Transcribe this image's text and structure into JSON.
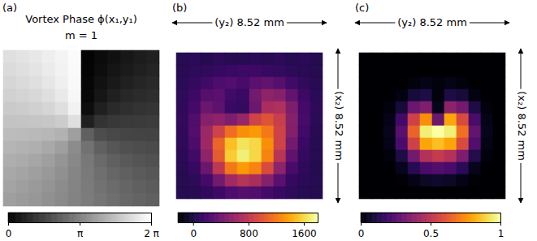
{
  "chart_data": [
    {
      "type": "heatmap",
      "panel_label": "(a)",
      "title": "Vortex Phase ϕ(x₁,y₁)",
      "subtitle": "m = 1",
      "color": "gray",
      "tick_labels": false,
      "cells": [
        [
          5.5,
          5.6,
          5.72,
          5.86,
          6.02,
          6.19,
          0.09,
          0.27,
          0.43,
          0.57,
          0.69,
          0.79
        ],
        [
          5.4,
          5.5,
          5.62,
          5.78,
          5.96,
          6.17,
          0.11,
          0.32,
          0.51,
          0.66,
          0.79,
          0.89
        ],
        [
          5.28,
          5.37,
          5.5,
          5.66,
          5.88,
          6.14,
          0.14,
          0.41,
          0.62,
          0.79,
          0.91,
          1.0
        ],
        [
          5.14,
          5.22,
          5.33,
          5.5,
          5.74,
          6.09,
          0.2,
          0.54,
          0.79,
          0.95,
          1.06,
          1.14
        ],
        [
          4.98,
          5.03,
          5.12,
          5.25,
          5.5,
          5.96,
          0.32,
          0.79,
          1.03,
          1.17,
          1.25,
          1.31
        ],
        [
          4.8,
          4.82,
          4.85,
          4.91,
          5.03,
          5.5,
          0.79,
          1.25,
          1.37,
          1.43,
          1.46,
          1.48
        ],
        [
          4.62,
          4.6,
          4.57,
          4.52,
          4.39,
          3.93,
          2.36,
          1.89,
          1.77,
          1.71,
          1.68,
          1.66
        ],
        [
          4.45,
          4.39,
          4.31,
          4.17,
          3.93,
          3.46,
          2.82,
          2.36,
          2.11,
          1.98,
          1.89,
          1.84
        ],
        [
          4.29,
          4.21,
          4.09,
          3.93,
          3.68,
          3.34,
          2.95,
          2.6,
          2.36,
          2.19,
          2.08,
          2.0
        ],
        [
          4.15,
          4.05,
          3.93,
          3.76,
          3.55,
          3.28,
          3.0,
          2.74,
          2.52,
          2.36,
          2.23,
          2.14
        ],
        [
          4.03,
          3.93,
          3.8,
          3.65,
          3.46,
          3.25,
          3.03,
          2.82,
          2.64,
          2.48,
          2.36,
          2.26
        ],
        [
          3.93,
          3.83,
          3.71,
          3.57,
          3.41,
          3.23,
          3.05,
          2.88,
          2.72,
          2.57,
          2.46,
          2.36
        ]
      ],
      "colorbar": {
        "range": [
          0,
          6.2832
        ],
        "ticks": [
          0,
          {
            "value": 3.1416,
            "label": "π"
          },
          {
            "value": 6.2832,
            "label": "2 π"
          }
        ]
      }
    },
    {
      "type": "heatmap",
      "panel_label": "(b)",
      "xlabel": "(y₂) 8.52 mm",
      "ylabel": "(x₂) 8.52 mm",
      "color": "inferno",
      "tick_labels": false,
      "cells": [
        [
          60,
          80,
          50,
          90,
          70,
          60,
          80,
          70,
          90,
          60,
          80,
          50
        ],
        [
          70,
          90,
          110,
          130,
          150,
          170,
          160,
          140,
          120,
          90,
          70,
          60
        ],
        [
          80,
          120,
          180,
          240,
          260,
          220,
          300,
          340,
          280,
          180,
          110,
          70
        ],
        [
          90,
          160,
          280,
          300,
          180,
          150,
          420,
          560,
          520,
          340,
          160,
          80
        ],
        [
          100,
          200,
          380,
          320,
          150,
          120,
          380,
          700,
          720,
          480,
          200,
          90
        ],
        [
          110,
          250,
          520,
          560,
          480,
          600,
          900,
          1000,
          860,
          520,
          210,
          80
        ],
        [
          100,
          260,
          620,
          900,
          1150,
          1300,
          1350,
          1200,
          900,
          500,
          180,
          70
        ],
        [
          90,
          230,
          640,
          1100,
          1500,
          1650,
          1600,
          1300,
          900,
          420,
          150,
          60
        ],
        [
          80,
          180,
          560,
          1050,
          1550,
          1700,
          1600,
          1250,
          780,
          330,
          120,
          60
        ],
        [
          70,
          130,
          380,
          800,
          1200,
          1350,
          1250,
          950,
          560,
          220,
          100,
          50
        ],
        [
          60,
          90,
          200,
          420,
          650,
          760,
          700,
          520,
          300,
          130,
          80,
          60
        ],
        [
          50,
          70,
          100,
          160,
          240,
          280,
          260,
          200,
          140,
          90,
          60,
          50
        ]
      ],
      "colorbar": {
        "range": [
          -220,
          1800
        ],
        "ticks": [
          0,
          800,
          1600
        ]
      }
    },
    {
      "type": "heatmap",
      "panel_label": "(c)",
      "xlabel": "(y₂) 8.52 mm",
      "ylabel": "(x₂) 8.52 mm",
      "color": "inferno",
      "tick_labels": false,
      "cells": [
        [
          0,
          0,
          0,
          0,
          0,
          0,
          0,
          0,
          0,
          0,
          0,
          0
        ],
        [
          0,
          0,
          0,
          0,
          0,
          0,
          0,
          0,
          0,
          0,
          0,
          0
        ],
        [
          0,
          0,
          0,
          0,
          0.02,
          0.04,
          0.02,
          0.04,
          0.02,
          0,
          0,
          0
        ],
        [
          0,
          0,
          0,
          0.03,
          0.1,
          0.12,
          0.02,
          0.12,
          0.1,
          0.03,
          0,
          0
        ],
        [
          0,
          0,
          0.02,
          0.1,
          0.3,
          0.35,
          0.05,
          0.38,
          0.32,
          0.12,
          0.02,
          0
        ],
        [
          0,
          0,
          0.04,
          0.2,
          0.55,
          0.75,
          0.3,
          0.8,
          0.58,
          0.22,
          0.04,
          0
        ],
        [
          0,
          0,
          0.05,
          0.25,
          0.65,
          0.95,
          1.0,
          0.95,
          0.68,
          0.28,
          0.05,
          0
        ],
        [
          0,
          0,
          0.04,
          0.22,
          0.55,
          0.8,
          0.85,
          0.8,
          0.58,
          0.24,
          0.04,
          0
        ],
        [
          0,
          0,
          0.02,
          0.12,
          0.32,
          0.48,
          0.52,
          0.48,
          0.34,
          0.13,
          0.02,
          0
        ],
        [
          0,
          0,
          0,
          0.05,
          0.14,
          0.22,
          0.24,
          0.22,
          0.15,
          0.05,
          0,
          0
        ],
        [
          0,
          0,
          0,
          0.01,
          0.04,
          0.07,
          0.08,
          0.07,
          0.04,
          0.01,
          0,
          0
        ],
        [
          0,
          0,
          0,
          0,
          0,
          0,
          0,
          0,
          0,
          0,
          0,
          0
        ]
      ],
      "colorbar": {
        "range": [
          0,
          1
        ],
        "ticks": [
          0,
          0.5,
          1
        ]
      }
    }
  ]
}
